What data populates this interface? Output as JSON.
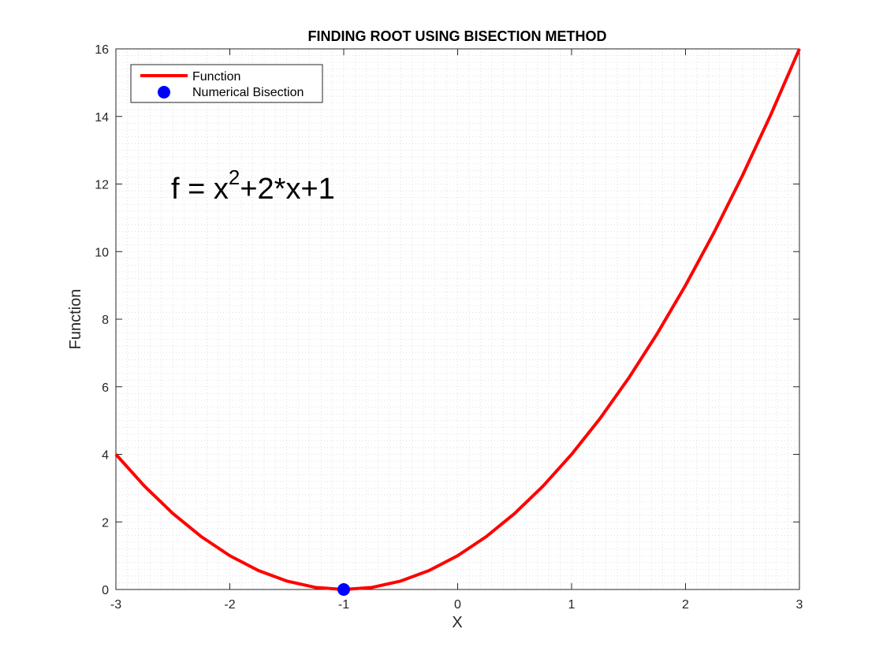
{
  "chart_data": {
    "type": "line",
    "title": "FINDING ROOT USING BISECTION METHOD",
    "xlabel": "X",
    "ylabel": "Function",
    "xlim": [
      -3,
      3
    ],
    "ylim": [
      0,
      16
    ],
    "x_ticks": [
      "-3",
      "-2",
      "-1",
      "0",
      "1",
      "2",
      "3"
    ],
    "y_ticks": [
      "0",
      "2",
      "4",
      "6",
      "8",
      "10",
      "12",
      "14",
      "16"
    ],
    "grid": "minor dotted",
    "legend_position": "top-left",
    "annotation": {
      "base": "f = x",
      "superscript": "2",
      "rest": "+2*x+1"
    },
    "series": [
      {
        "name": "Function",
        "type": "line",
        "color": "#ff0000",
        "equation": "x^2+2*x+1",
        "x": [
          -3,
          -2.75,
          -2.5,
          -2.25,
          -2,
          -1.75,
          -1.5,
          -1.25,
          -1,
          -0.75,
          -0.5,
          -0.25,
          0,
          0.25,
          0.5,
          0.75,
          1,
          1.25,
          1.5,
          1.75,
          2,
          2.25,
          2.5,
          2.75,
          3
        ],
        "y": [
          4,
          3.0625,
          2.25,
          1.5625,
          1,
          0.5625,
          0.25,
          0.0625,
          0,
          0.0625,
          0.25,
          0.5625,
          1,
          1.5625,
          2.25,
          3.0625,
          4,
          5.0625,
          6.25,
          7.5625,
          9,
          10.5625,
          12.25,
          14.0625,
          16
        ]
      },
      {
        "name": "Numerical Bisection",
        "type": "scatter",
        "color": "#0000ff",
        "x": [
          -1
        ],
        "y": [
          0
        ]
      }
    ]
  }
}
